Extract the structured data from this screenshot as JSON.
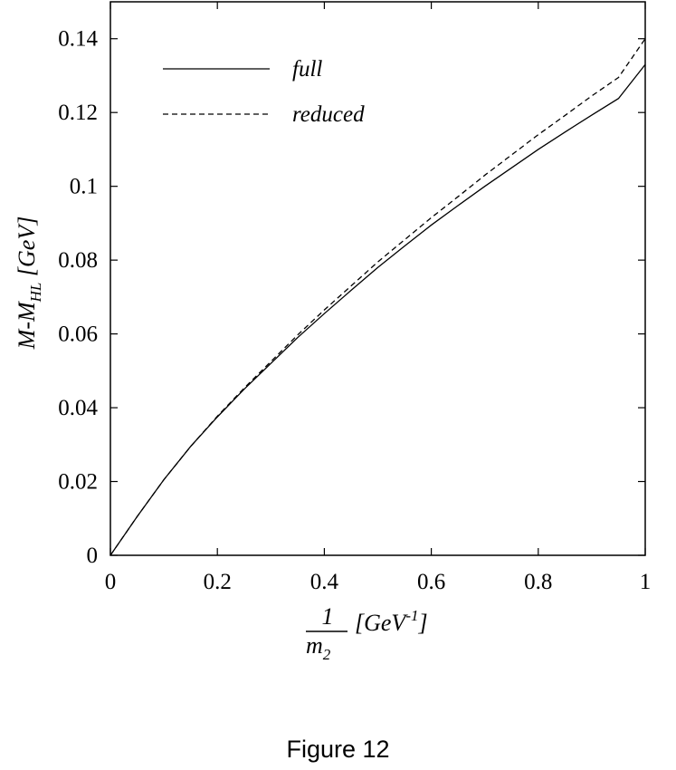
{
  "chart_data": {
    "type": "line",
    "xlabel_num": "1",
    "xlabel_den": "m",
    "xlabel_den_sub": "2",
    "xlabel_unit_open": "[GeV",
    "xlabel_unit_sup": "-1",
    "xlabel_unit_close": "]",
    "ylabel_main": "M-M",
    "ylabel_sub": "HL",
    "ylabel_unit": " [GeV]",
    "xlim": [
      0,
      1
    ],
    "ylim": [
      0,
      0.15
    ],
    "xticks": [
      {
        "v": 0,
        "label": "0"
      },
      {
        "v": 0.2,
        "label": "0.2"
      },
      {
        "v": 0.4,
        "label": "0.4"
      },
      {
        "v": 0.6,
        "label": "0.6"
      },
      {
        "v": 0.8,
        "label": "0.8"
      },
      {
        "v": 1,
        "label": "1"
      }
    ],
    "yticks": [
      {
        "v": 0,
        "label": "0"
      },
      {
        "v": 0.02,
        "label": "0.02"
      },
      {
        "v": 0.04,
        "label": "0.04"
      },
      {
        "v": 0.06,
        "label": "0.06"
      },
      {
        "v": 0.08,
        "label": "0.08"
      },
      {
        "v": 0.1,
        "label": "0.1"
      },
      {
        "v": 0.12,
        "label": "0.12"
      },
      {
        "v": 0.14,
        "label": "0.14"
      }
    ],
    "grid": false,
    "legend_position": "top-left",
    "series": [
      {
        "name": "full",
        "style": "solid",
        "x": [
          0,
          0.05,
          0.1,
          0.15,
          0.2,
          0.25,
          0.3,
          0.35,
          0.4,
          0.45,
          0.5,
          0.55,
          0.6,
          0.65,
          0.7,
          0.75,
          0.8,
          0.85,
          0.9,
          0.95,
          1.0
        ],
        "y": [
          0,
          0.0105,
          0.0205,
          0.0295,
          0.0375,
          0.045,
          0.052,
          0.059,
          0.0655,
          0.0718,
          0.078,
          0.0838,
          0.0895,
          0.0948,
          0.1,
          0.105,
          0.11,
          0.1147,
          0.1193,
          0.1238,
          0.133
        ]
      },
      {
        "name": "reduced",
        "style": "dashed",
        "x": [
          0,
          0.05,
          0.1,
          0.15,
          0.2,
          0.25,
          0.3,
          0.35,
          0.4,
          0.45,
          0.5,
          0.55,
          0.6,
          0.65,
          0.7,
          0.75,
          0.8,
          0.85,
          0.9,
          0.95,
          1.0
        ],
        "y": [
          0,
          0.0105,
          0.0205,
          0.0295,
          0.0377,
          0.0453,
          0.0525,
          0.0597,
          0.0665,
          0.073,
          0.0795,
          0.0855,
          0.0915,
          0.0972,
          0.103,
          0.1085,
          0.114,
          0.1192,
          0.1245,
          0.1295,
          0.14
        ]
      }
    ]
  },
  "caption": "Figure 12"
}
